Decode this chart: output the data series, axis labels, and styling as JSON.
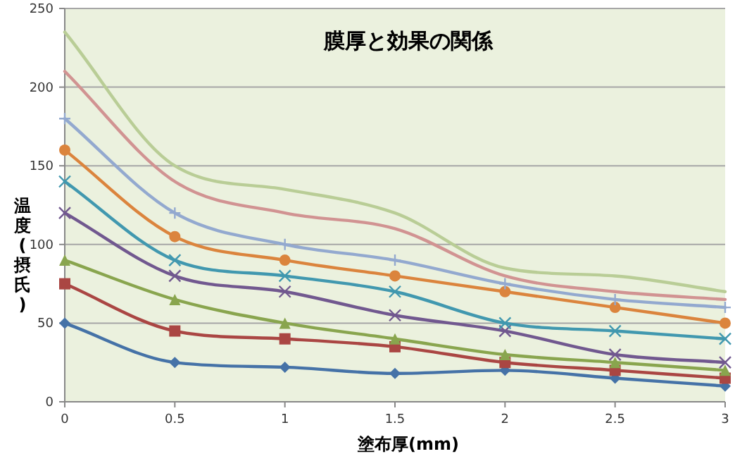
{
  "chart_data": {
    "type": "line",
    "title": "膜厚と効果の関係",
    "xlabel": "塗布厚(mm)",
    "ylabel": "温度(摂氏)",
    "x": [
      0,
      0.5,
      1,
      1.5,
      2,
      2.5,
      3
    ],
    "xlim": [
      0,
      3
    ],
    "xticks": [
      0,
      0.5,
      1,
      1.5,
      2,
      2.5,
      3
    ],
    "ylim": [
      0,
      250
    ],
    "yticks": [
      0,
      50,
      100,
      150,
      200,
      250
    ],
    "grid": "y",
    "series": [
      {
        "color": "#4572a7",
        "marker": "diamond",
        "values": [
          50,
          25,
          22,
          18,
          20,
          15,
          10
        ]
      },
      {
        "color": "#aa4643",
        "marker": "square",
        "values": [
          75,
          45,
          40,
          35,
          25,
          20,
          15
        ]
      },
      {
        "color": "#89a54e",
        "marker": "triangle",
        "values": [
          90,
          65,
          50,
          40,
          30,
          25,
          20
        ]
      },
      {
        "color": "#71588f",
        "marker": "cross",
        "values": [
          120,
          80,
          70,
          55,
          45,
          30,
          25
        ]
      },
      {
        "color": "#4198af",
        "marker": "cross",
        "values": [
          140,
          90,
          80,
          70,
          50,
          45,
          40
        ]
      },
      {
        "color": "#db843d",
        "marker": "circle",
        "values": [
          160,
          105,
          90,
          80,
          70,
          60,
          50
        ]
      },
      {
        "color": "#93a9cf",
        "marker": "plus",
        "values": [
          180,
          120,
          100,
          90,
          75,
          65,
          60
        ]
      },
      {
        "color": "#d19392",
        "marker": "none",
        "values": [
          210,
          140,
          120,
          110,
          80,
          70,
          65
        ]
      },
      {
        "color": "#b9cd96",
        "marker": "none",
        "values": [
          235,
          150,
          135,
          120,
          85,
          80,
          70
        ]
      }
    ]
  }
}
